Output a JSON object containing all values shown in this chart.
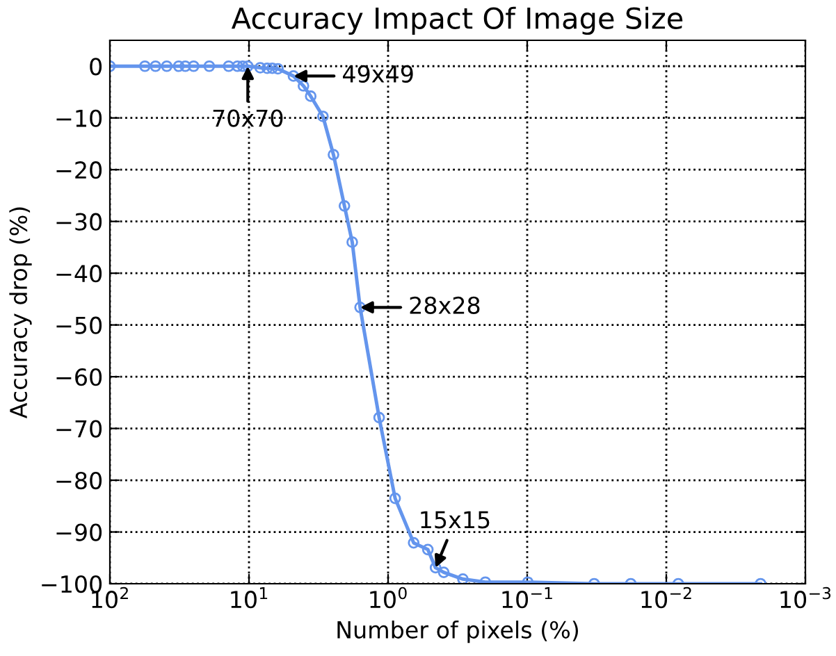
{
  "chart_data": {
    "type": "line",
    "title": "Accuracy Impact Of Image Size",
    "xlabel": "Number of pixels (%)",
    "ylabel": "Accuracy drop (%)",
    "x": [
      100,
      56,
      47,
      39,
      32,
      28.7,
      25,
      19.3,
      14,
      12.1,
      11.1,
      10.2,
      8.3,
      7.4,
      6.8,
      6.2,
      4.79,
      4.06,
      3.6,
      2.94,
      2.47,
      2.06,
      1.81,
      1.59,
      1.16,
      0.89,
      0.655,
      0.518,
      0.456,
      0.398,
      0.29,
      0.2,
      0.099,
      0.033,
      0.018,
      0.0082,
      0.0021
    ],
    "series": [
      {
        "color": "#6495ed",
        "values": [
          0,
          0,
          0,
          0,
          0,
          0,
          0,
          0,
          0,
          0,
          0,
          0,
          -0.3,
          -0.4,
          -0.4,
          -0.5,
          -1.9,
          -3.8,
          -5.8,
          -9.7,
          -17.1,
          -27.0,
          -34.0,
          -46.6,
          -67.9,
          -83.5,
          -92.1,
          -93.4,
          -96.9,
          -97.8,
          -99.1,
          -99.7,
          -99.7,
          -100,
          -100,
          -100,
          -100
        ]
      }
    ],
    "marker": "circle",
    "line_style": "solid",
    "log": "x",
    "grid": true,
    "xlim": [
      100,
      0.001
    ],
    "xticks": [
      {
        "value": 100,
        "label": "10$^{2}$"
      },
      {
        "value": 10,
        "label": "10$^{1}$"
      },
      {
        "value": 1,
        "label": "10$^{0}$"
      },
      {
        "value": 0.1,
        "label": "10$^{−1}$"
      },
      {
        "value": 0.01,
        "label": "10$^{−2}$"
      },
      {
        "value": 0.001,
        "label": "10$^{−3}$"
      }
    ],
    "ylim": [
      -100,
      5
    ],
    "yticks": [
      0,
      -10,
      -20,
      -30,
      -40,
      -50,
      -60,
      -70,
      -80,
      -90,
      -100
    ],
    "annotations": [
      {
        "text": "70x70",
        "x": 10.2,
        "y": 0
      },
      {
        "text": "49x49",
        "x": 4.79,
        "y": -1.9
      },
      {
        "text": "28x28",
        "x": 1.59,
        "y": -46.6
      },
      {
        "text": "15x15",
        "x": 0.456,
        "y": -96.9
      }
    ]
  }
}
